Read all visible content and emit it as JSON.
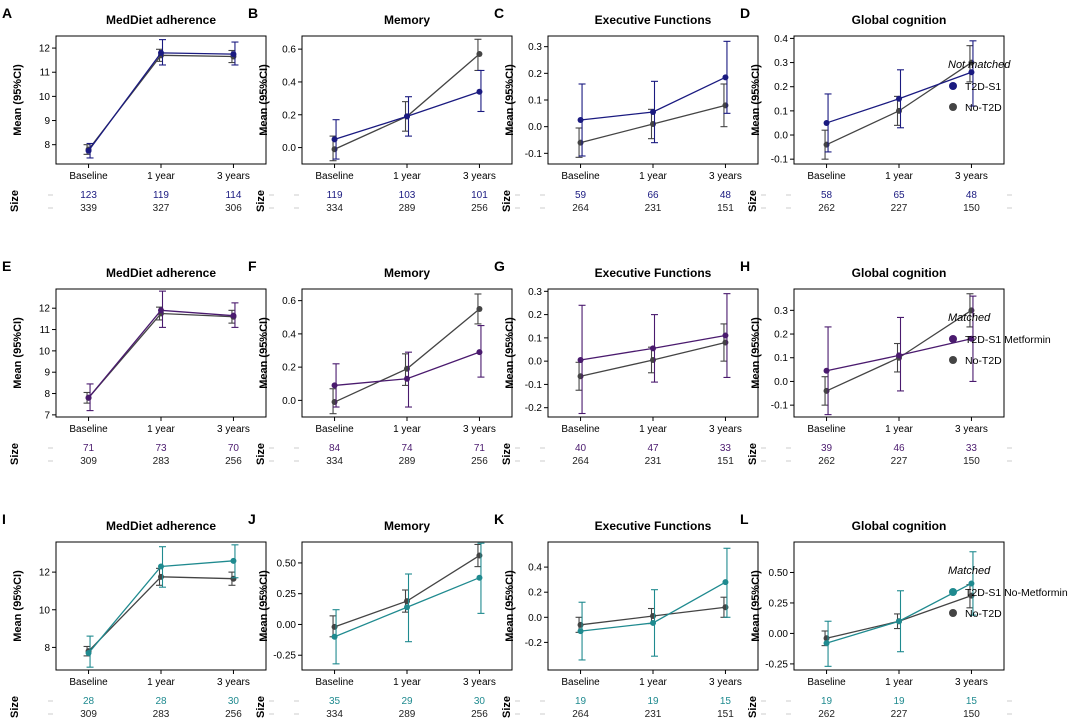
{
  "chart_data": [
    {
      "panel": "A",
      "title": "MedDiet adherence",
      "type": "line",
      "categories": [
        "Baseline",
        "1 year",
        "3 years"
      ],
      "ylim": [
        7.2,
        12.5
      ],
      "yticks": [
        8,
        9,
        10,
        11,
        12
      ],
      "ytick_labels": [
        "8",
        "9",
        "10",
        "11",
        "12"
      ],
      "ylabel": "Mean (95%CI)",
      "size_label": "Size",
      "group_color": "#1a1a80",
      "series": [
        {
          "name": "T2D-S1",
          "color": "#1a1a80",
          "values": [
            7.75,
            11.8,
            11.75
          ],
          "ci_low": [
            7.45,
            11.3,
            11.3
          ],
          "ci_high": [
            8.05,
            12.35,
            12.25
          ]
        },
        {
          "name": "No-T2D",
          "color": "#444444",
          "values": [
            7.8,
            11.7,
            11.65
          ],
          "ci_low": [
            7.6,
            11.45,
            11.4
          ],
          "ci_high": [
            8.0,
            11.95,
            11.9
          ]
        }
      ],
      "sizes": {
        "group": [
          "123",
          "119",
          "114"
        ],
        "control": [
          "339",
          "327",
          "306"
        ]
      }
    },
    {
      "panel": "B",
      "title": "Memory",
      "type": "line",
      "categories": [
        "Baseline",
        "1 year",
        "3 years"
      ],
      "ylim": [
        -0.1,
        0.68
      ],
      "yticks": [
        0.0,
        0.2,
        0.4,
        0.6
      ],
      "ytick_labels": [
        "0.0",
        "0.2",
        "0.4",
        "0.6"
      ],
      "ylabel": "Mean (95%CI)",
      "size_label": "Size",
      "group_color": "#1a1a80",
      "series": [
        {
          "name": "T2D-S1",
          "color": "#1a1a80",
          "values": [
            0.05,
            0.19,
            0.34
          ],
          "ci_low": [
            -0.07,
            0.07,
            0.22
          ],
          "ci_high": [
            0.17,
            0.31,
            0.47
          ]
        },
        {
          "name": "No-T2D",
          "color": "#444444",
          "values": [
            -0.01,
            0.19,
            0.57
          ],
          "ci_low": [
            -0.08,
            0.1,
            0.47
          ],
          "ci_high": [
            0.07,
            0.28,
            0.66
          ]
        }
      ],
      "sizes": {
        "group": [
          "119",
          "103",
          "101"
        ],
        "control": [
          "334",
          "289",
          "256"
        ]
      }
    },
    {
      "panel": "C",
      "title": "Executive Functions",
      "type": "line",
      "categories": [
        "Baseline",
        "1 year",
        "3 years"
      ],
      "ylim": [
        -0.14,
        0.34
      ],
      "yticks": [
        -0.1,
        0.0,
        0.1,
        0.2,
        0.3
      ],
      "ytick_labels": [
        "-0.1",
        "0.0",
        "0.1",
        "0.2",
        "0.3"
      ],
      "ylabel": "Mean (95%CI)",
      "size_label": "Size",
      "group_color": "#1a1a80",
      "series": [
        {
          "name": "T2D-S1",
          "color": "#1a1a80",
          "values": [
            0.025,
            0.055,
            0.185
          ],
          "ci_low": [
            -0.11,
            -0.06,
            0.05
          ],
          "ci_high": [
            0.16,
            0.17,
            0.32
          ]
        },
        {
          "name": "No-T2D",
          "color": "#444444",
          "values": [
            -0.06,
            0.01,
            0.08
          ],
          "ci_low": [
            -0.115,
            -0.045,
            0.0
          ],
          "ci_high": [
            -0.005,
            0.065,
            0.16
          ]
        }
      ],
      "sizes": {
        "group": [
          "59",
          "66",
          "48"
        ],
        "control": [
          "264",
          "231",
          "151"
        ]
      }
    },
    {
      "panel": "D",
      "title": "Global cognition",
      "type": "line",
      "categories": [
        "Baseline",
        "1 year",
        "3 years"
      ],
      "ylim": [
        -0.12,
        0.41
      ],
      "yticks": [
        -0.1,
        0.0,
        0.1,
        0.2,
        0.3,
        0.4
      ],
      "ytick_labels": [
        "-0.1",
        "0.0",
        "0.1",
        "0.2",
        "0.3",
        "0.4"
      ],
      "ylabel": "Mean (95%CI)",
      "size_label": "Size",
      "group_color": "#1a1a80",
      "series": [
        {
          "name": "T2D-S1",
          "color": "#1a1a80",
          "values": [
            0.05,
            0.15,
            0.26
          ],
          "ci_low": [
            -0.07,
            0.03,
            0.12
          ],
          "ci_high": [
            0.17,
            0.27,
            0.39
          ]
        },
        {
          "name": "No-T2D",
          "color": "#444444",
          "values": [
            -0.04,
            0.1,
            0.3
          ],
          "ci_low": [
            -0.1,
            0.04,
            0.22
          ],
          "ci_high": [
            0.02,
            0.16,
            0.37
          ]
        }
      ],
      "sizes": {
        "group": [
          "58",
          "65",
          "48"
        ],
        "control": [
          "262",
          "227",
          "150"
        ]
      }
    },
    {
      "panel": "E",
      "title": "MedDiet adherence",
      "type": "line",
      "categories": [
        "Baseline",
        "1 year",
        "3 years"
      ],
      "ylim": [
        6.9,
        12.9
      ],
      "yticks": [
        7,
        8,
        9,
        10,
        11,
        12
      ],
      "ytick_labels": [
        "7",
        "8",
        "9",
        "10",
        "11",
        "12"
      ],
      "ylabel": "Mean (95%CI)",
      "size_label": "Size",
      "group_color": "#4a1a6e",
      "series": [
        {
          "name": "T2D-S1 Metformin",
          "color": "#4a1a6e",
          "values": [
            7.8,
            11.9,
            11.65
          ],
          "ci_low": [
            7.2,
            11.1,
            11.1
          ],
          "ci_high": [
            8.45,
            12.8,
            12.25
          ]
        },
        {
          "name": "No-T2D",
          "color": "#444444",
          "values": [
            7.8,
            11.75,
            11.6
          ],
          "ci_low": [
            7.55,
            11.45,
            11.3
          ],
          "ci_high": [
            8.05,
            12.05,
            11.9
          ]
        }
      ],
      "sizes": {
        "group": [
          "71",
          "73",
          "70"
        ],
        "control": [
          "309",
          "283",
          "256"
        ]
      }
    },
    {
      "panel": "F",
      "title": "Memory",
      "type": "line",
      "categories": [
        "Baseline",
        "1 year",
        "3 years"
      ],
      "ylim": [
        -0.1,
        0.67
      ],
      "yticks": [
        0.0,
        0.2,
        0.4,
        0.6
      ],
      "ytick_labels": [
        "0.0",
        "0.2",
        "0.4",
        "0.6"
      ],
      "ylabel": "Mean (95%CI)",
      "size_label": "Size",
      "group_color": "#4a1a6e",
      "series": [
        {
          "name": "T2D-S1 Metformin",
          "color": "#4a1a6e",
          "values": [
            0.09,
            0.13,
            0.29
          ],
          "ci_low": [
            -0.04,
            -0.04,
            0.14
          ],
          "ci_high": [
            0.22,
            0.29,
            0.45
          ]
        },
        {
          "name": "No-T2D",
          "color": "#444444",
          "values": [
            -0.01,
            0.19,
            0.55
          ],
          "ci_low": [
            -0.08,
            0.09,
            0.46
          ],
          "ci_high": [
            0.07,
            0.28,
            0.64
          ]
        }
      ],
      "sizes": {
        "group": [
          "84",
          "74",
          "71"
        ],
        "control": [
          "334",
          "289",
          "256"
        ]
      }
    },
    {
      "panel": "G",
      "title": "Executive Functions",
      "type": "line",
      "categories": [
        "Baseline",
        "1 year",
        "3 years"
      ],
      "ylim": [
        -0.24,
        0.31
      ],
      "yticks": [
        -0.2,
        -0.1,
        0.0,
        0.1,
        0.2,
        0.3
      ],
      "ytick_labels": [
        "-0.2",
        "-0.1",
        "0.0",
        "0.1",
        "0.2",
        "0.3"
      ],
      "ylabel": "Mean (95%CI)",
      "size_label": "Size",
      "group_color": "#4a1a6e",
      "series": [
        {
          "name": "T2D-S1 Metformin",
          "color": "#4a1a6e",
          "values": [
            0.005,
            0.055,
            0.11
          ],
          "ci_low": [
            -0.225,
            -0.09,
            -0.07
          ],
          "ci_high": [
            0.24,
            0.2,
            0.29
          ]
        },
        {
          "name": "No-T2D",
          "color": "#444444",
          "values": [
            -0.065,
            0.005,
            0.08
          ],
          "ci_low": [
            -0.125,
            -0.05,
            0.0
          ],
          "ci_high": [
            -0.005,
            0.06,
            0.16
          ]
        }
      ],
      "sizes": {
        "group": [
          "40",
          "47",
          "33"
        ],
        "control": [
          "264",
          "231",
          "151"
        ]
      }
    },
    {
      "panel": "H",
      "title": "Global cognition",
      "type": "line",
      "categories": [
        "Baseline",
        "1 year",
        "3 years"
      ],
      "ylim": [
        -0.15,
        0.39
      ],
      "yticks": [
        -0.1,
        0.0,
        0.1,
        0.2,
        0.3
      ],
      "ytick_labels": [
        "-0.1",
        "0.0",
        "0.1",
        "0.2",
        "0.3"
      ],
      "ylabel": "Mean (95%CI)",
      "size_label": "Size",
      "group_color": "#4a1a6e",
      "series": [
        {
          "name": "T2D-S1 Metformin",
          "color": "#4a1a6e",
          "values": [
            0.045,
            0.11,
            0.18
          ],
          "ci_low": [
            -0.14,
            -0.04,
            0.0
          ],
          "ci_high": [
            0.23,
            0.27,
            0.36
          ]
        },
        {
          "name": "No-T2D",
          "color": "#444444",
          "values": [
            -0.04,
            0.1,
            0.3
          ],
          "ci_low": [
            -0.1,
            0.04,
            0.23
          ],
          "ci_high": [
            0.02,
            0.16,
            0.37
          ]
        }
      ],
      "sizes": {
        "group": [
          "39",
          "46",
          "33"
        ],
        "control": [
          "262",
          "227",
          "150"
        ]
      }
    },
    {
      "panel": "I",
      "title": "MedDiet adherence",
      "type": "line",
      "categories": [
        "Baseline",
        "1 year",
        "3 years"
      ],
      "ylim": [
        6.8,
        13.6
      ],
      "yticks": [
        8,
        10,
        12
      ],
      "ytick_labels": [
        "8",
        "10",
        "12"
      ],
      "ylabel": "Mean (95%CI)",
      "size_label": "Size",
      "group_color": "#1f8a8f",
      "series": [
        {
          "name": "T2D-S1 No-Metformin",
          "color": "#1f8a8f",
          "values": [
            7.7,
            12.3,
            12.6
          ],
          "ci_low": [
            6.95,
            11.2,
            11.7
          ],
          "ci_high": [
            8.6,
            13.35,
            13.45
          ]
        },
        {
          "name": "No-T2D",
          "color": "#444444",
          "values": [
            7.8,
            11.75,
            11.65
          ],
          "ci_low": [
            7.55,
            11.3,
            11.3
          ],
          "ci_high": [
            8.05,
            12.2,
            12.0
          ]
        }
      ],
      "sizes": {
        "group": [
          "28",
          "28",
          "30"
        ],
        "control": [
          "309",
          "283",
          "256"
        ]
      }
    },
    {
      "panel": "J",
      "title": "Memory",
      "type": "line",
      "categories": [
        "Baseline",
        "1 year",
        "3 years"
      ],
      "ylim": [
        -0.37,
        0.67
      ],
      "yticks": [
        -0.25,
        0.0,
        0.25,
        0.5
      ],
      "ytick_labels": [
        "-0.25",
        "0.00",
        "0.25",
        "0.50"
      ],
      "ylabel": "Mean (95%CI)",
      "size_label": "Size",
      "group_color": "#1f8a8f",
      "series": [
        {
          "name": "T2D-S1 No-Metformin",
          "color": "#1f8a8f",
          "values": [
            -0.1,
            0.14,
            0.38
          ],
          "ci_low": [
            -0.32,
            -0.14,
            0.09
          ],
          "ci_high": [
            0.12,
            0.41,
            0.66
          ]
        },
        {
          "name": "No-T2D",
          "color": "#444444",
          "values": [
            -0.02,
            0.19,
            0.56
          ],
          "ci_low": [
            -0.1,
            0.1,
            0.47
          ],
          "ci_high": [
            0.07,
            0.28,
            0.65
          ]
        }
      ],
      "sizes": {
        "group": [
          "35",
          "29",
          "30"
        ],
        "control": [
          "334",
          "289",
          "256"
        ]
      }
    },
    {
      "panel": "K",
      "title": "Executive Functions",
      "type": "line",
      "categories": [
        "Baseline",
        "1 year",
        "3 years"
      ],
      "ylim": [
        -0.42,
        0.6
      ],
      "yticks": [
        -0.2,
        0.0,
        0.2,
        0.4
      ],
      "ytick_labels": [
        "-0.2",
        "0.0",
        "0.2",
        "0.4"
      ],
      "ylabel": "Mean (95%CI)",
      "size_label": "Size",
      "group_color": "#1f8a8f",
      "series": [
        {
          "name": "T2D-S1 No-Metformin",
          "color": "#1f8a8f",
          "values": [
            -0.11,
            -0.045,
            0.28
          ],
          "ci_low": [
            -0.34,
            -0.31,
            0.0
          ],
          "ci_high": [
            0.12,
            0.22,
            0.55
          ]
        },
        {
          "name": "No-T2D",
          "color": "#444444",
          "values": [
            -0.06,
            0.01,
            0.08
          ],
          "ci_low": [
            -0.12,
            -0.05,
            0.0
          ],
          "ci_high": [
            0.0,
            0.07,
            0.16
          ]
        }
      ],
      "sizes": {
        "group": [
          "19",
          "19",
          "15"
        ],
        "control": [
          "264",
          "231",
          "151"
        ]
      }
    },
    {
      "panel": "L",
      "title": "Global cognition",
      "type": "line",
      "categories": [
        "Baseline",
        "1 year",
        "3 years"
      ],
      "ylim": [
        -0.3,
        0.75
      ],
      "yticks": [
        -0.25,
        0.0,
        0.25,
        0.5
      ],
      "ytick_labels": [
        "-0.25",
        "0.00",
        "0.25",
        "0.50"
      ],
      "ylabel": "Mean (95%CI)",
      "size_label": "Size",
      "group_color": "#1f8a8f",
      "series": [
        {
          "name": "T2D-S1 No-Metformin",
          "color": "#1f8a8f",
          "values": [
            -0.08,
            0.1,
            0.41
          ],
          "ci_low": [
            -0.27,
            -0.15,
            0.15
          ],
          "ci_high": [
            0.1,
            0.35,
            0.67
          ]
        },
        {
          "name": "No-T2D",
          "color": "#444444",
          "values": [
            -0.04,
            0.1,
            0.31
          ],
          "ci_low": [
            -0.1,
            0.04,
            0.21
          ],
          "ci_high": [
            0.02,
            0.16,
            0.4
          ]
        }
      ],
      "sizes": {
        "group": [
          "19",
          "19",
          "15"
        ],
        "control": [
          "262",
          "227",
          "150"
        ]
      }
    }
  ],
  "legends": [
    {
      "title": "Not matched",
      "items": [
        {
          "label": "T2D-S1",
          "color": "#1a1a80"
        },
        {
          "label": "No-T2D",
          "color": "#444444"
        }
      ]
    },
    {
      "title": "Matched",
      "items": [
        {
          "label": "T2D-S1 Metformin",
          "color": "#4a1a6e"
        },
        {
          "label": "No-T2D",
          "color": "#444444"
        }
      ]
    },
    {
      "title": "Matched",
      "items": [
        {
          "label": "T2D-S1 No-Metformin",
          "color": "#1f8a8f"
        },
        {
          "label": "No-T2D",
          "color": "#444444"
        }
      ]
    }
  ]
}
